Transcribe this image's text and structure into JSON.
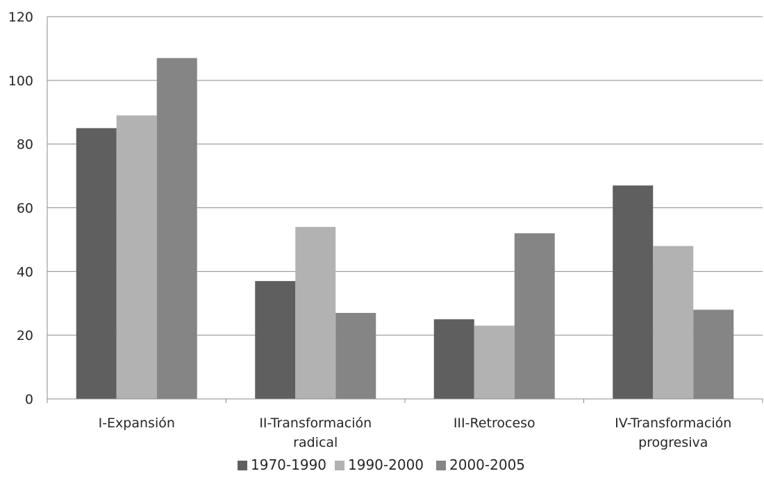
{
  "chart_data": {
    "type": "bar",
    "title": "",
    "xlabel": "",
    "ylabel": "",
    "categories": [
      [
        "I-Expansión"
      ],
      [
        "II-Transformación",
        "radical"
      ],
      [
        "III-Retroceso"
      ],
      [
        "IV-Transformación",
        "progresiva"
      ]
    ],
    "series": [
      {
        "name": "1970-1990",
        "color": "#5f5f5f",
        "values": [
          85,
          37,
          25,
          67
        ]
      },
      {
        "name": "1990-2000",
        "color": "#b2b2b2",
        "values": [
          89,
          54,
          23,
          48
        ]
      },
      {
        "name": "2000-2005",
        "color": "#858585",
        "values": [
          107,
          27,
          52,
          28
        ]
      }
    ],
    "ylim": [
      0,
      120
    ],
    "yticks": [
      0,
      20,
      40,
      60,
      80,
      100,
      120
    ],
    "grid": true,
    "legend": "bottom"
  }
}
